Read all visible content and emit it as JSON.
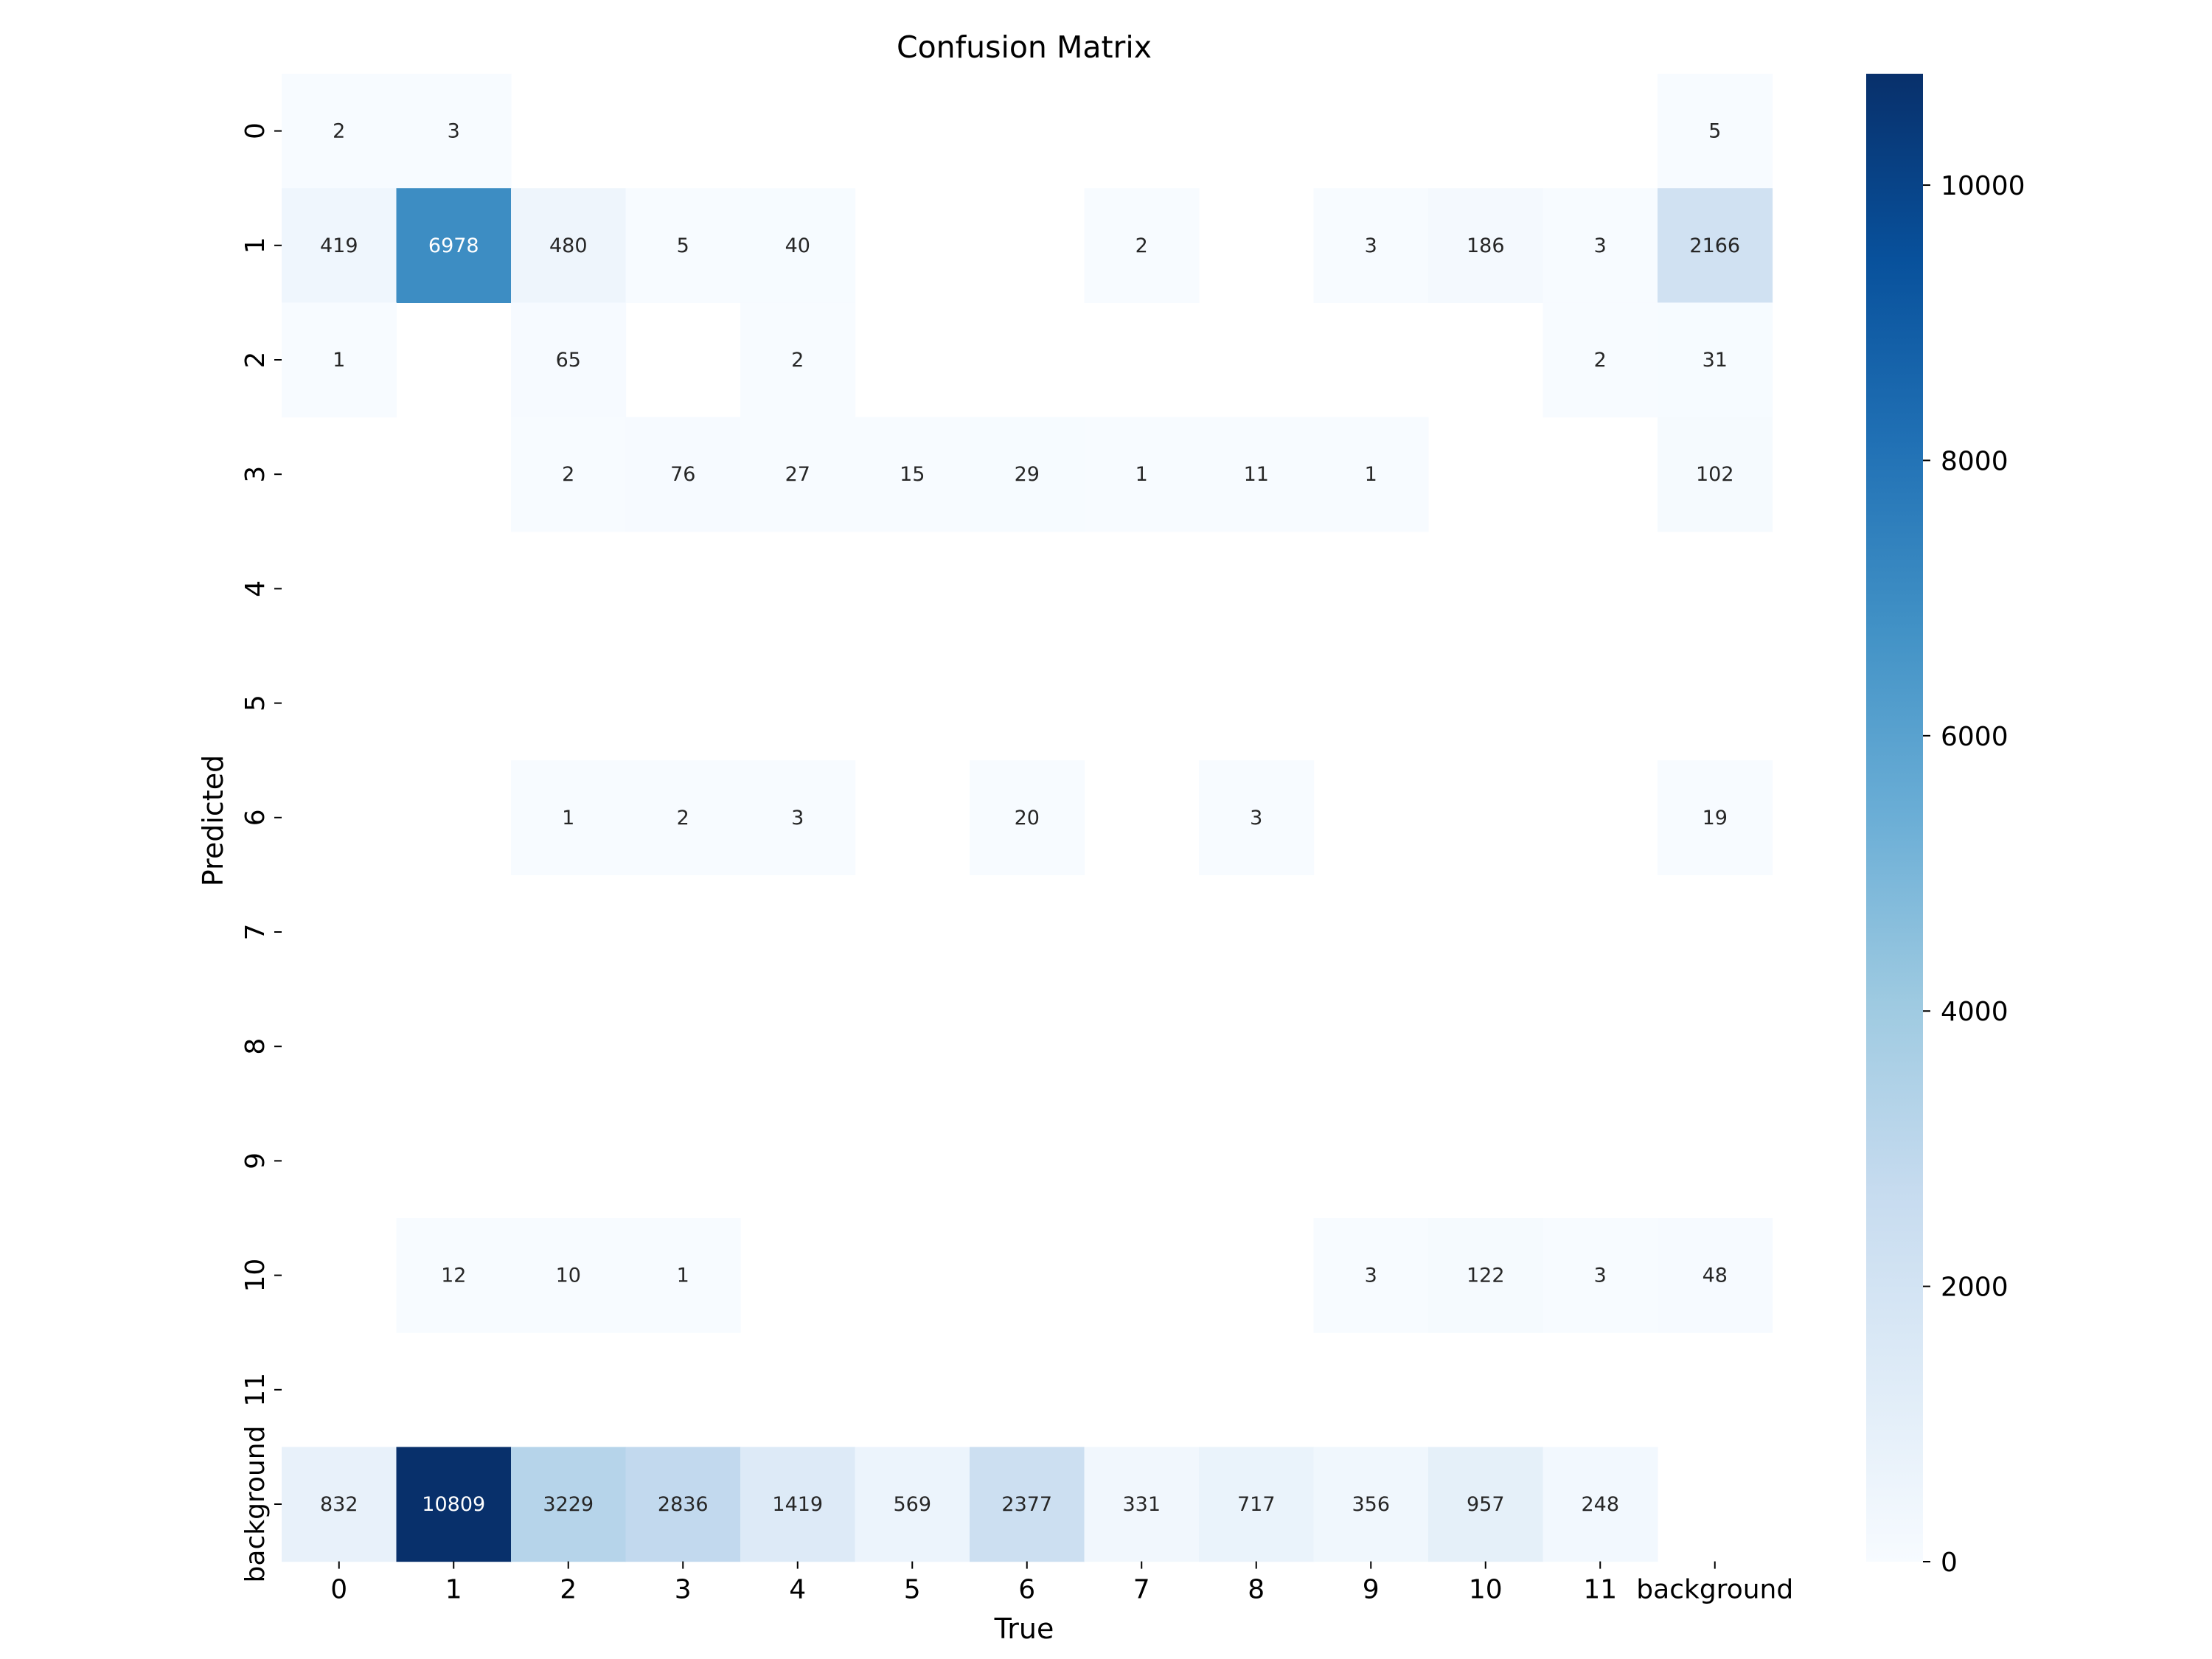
{
  "chart_data": {
    "type": "heatmap",
    "title": "Confusion Matrix",
    "xlabel": "True",
    "ylabel": "Predicted",
    "x_categories": [
      "0",
      "1",
      "2",
      "3",
      "4",
      "5",
      "6",
      "7",
      "8",
      "9",
      "10",
      "11",
      "background"
    ],
    "y_categories": [
      "0",
      "1",
      "2",
      "3",
      "4",
      "5",
      "6",
      "7",
      "8",
      "9",
      "10",
      "11",
      "background"
    ],
    "values": [
      [
        2,
        3,
        null,
        null,
        null,
        null,
        null,
        null,
        null,
        null,
        null,
        null,
        5
      ],
      [
        419,
        6978,
        480,
        5,
        40,
        null,
        null,
        2,
        null,
        3,
        186,
        3,
        2166
      ],
      [
        1,
        null,
        65,
        null,
        2,
        null,
        null,
        null,
        null,
        null,
        null,
        2,
        31
      ],
      [
        null,
        null,
        2,
        76,
        27,
        15,
        29,
        1,
        11,
        1,
        null,
        null,
        102
      ],
      [
        null,
        null,
        null,
        null,
        null,
        null,
        null,
        null,
        null,
        null,
        null,
        null,
        null
      ],
      [
        null,
        null,
        null,
        null,
        null,
        null,
        null,
        null,
        null,
        null,
        null,
        null,
        null
      ],
      [
        null,
        null,
        1,
        2,
        3,
        null,
        20,
        null,
        3,
        null,
        null,
        null,
        19
      ],
      [
        null,
        null,
        null,
        null,
        null,
        null,
        null,
        null,
        null,
        null,
        null,
        null,
        null
      ],
      [
        null,
        null,
        null,
        null,
        null,
        null,
        null,
        null,
        null,
        null,
        null,
        null,
        null
      ],
      [
        null,
        null,
        null,
        null,
        null,
        null,
        null,
        null,
        null,
        null,
        null,
        null,
        null
      ],
      [
        null,
        12,
        10,
        1,
        null,
        null,
        null,
        null,
        null,
        3,
        122,
        3,
        48
      ],
      [
        null,
        null,
        null,
        null,
        null,
        null,
        null,
        null,
        null,
        null,
        null,
        null,
        null
      ],
      [
        832,
        10809,
        3229,
        2836,
        1419,
        569,
        2377,
        331,
        717,
        356,
        957,
        248,
        null
      ]
    ],
    "colorscale": "Blues",
    "vmin": 0,
    "vmax": 10809,
    "colorbar_ticks": [
      0,
      2000,
      4000,
      6000,
      8000,
      10000
    ],
    "grid": false,
    "legend": "colorbar-right"
  }
}
